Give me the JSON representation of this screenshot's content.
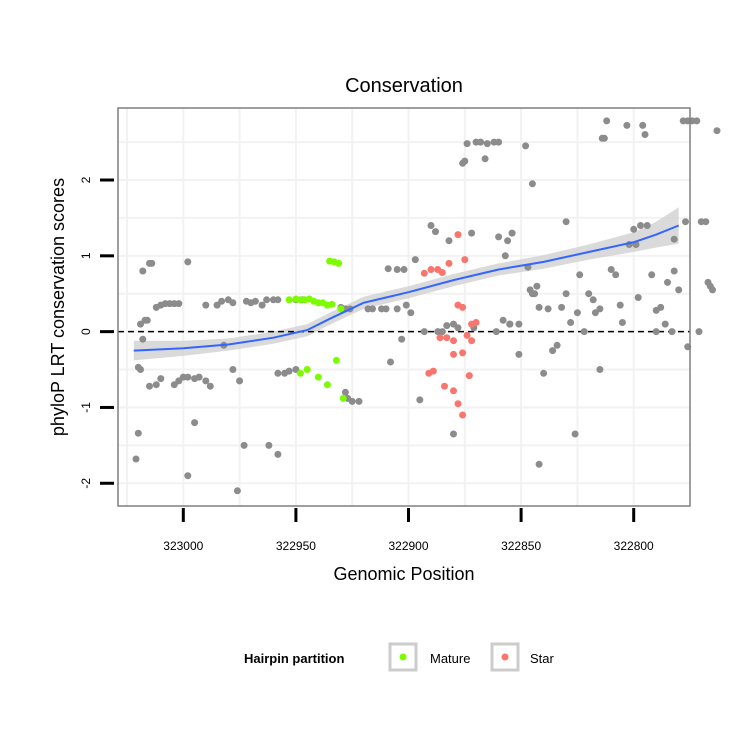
{
  "chart_data": {
    "type": "scatter",
    "title": "Conservation",
    "xlabel": "Genomic Position",
    "ylabel": "phyloP LRT conservation scores",
    "x_reversed": true,
    "xlim": [
      323029,
      322775
    ],
    "ylim": [
      -2.3,
      2.95
    ],
    "x_ticks": [
      323000,
      322950,
      322900,
      322850,
      322800
    ],
    "y_ticks": [
      -2,
      -1,
      0,
      1,
      2
    ],
    "reference_line": {
      "y": 0,
      "style": "dashed"
    },
    "grid": true,
    "legend": {
      "title": "Hairpin partition",
      "placement": "bottom",
      "entries": [
        {
          "label": "Mature",
          "color": "#7cfc00"
        },
        {
          "label": "Star",
          "color": "#f8766d"
        }
      ]
    },
    "colors": {
      "other": "#8c8c8c",
      "mature": "#7cfc00",
      "star": "#f8766d",
      "smooth": "#3366ff",
      "band": "#d3d3d3"
    },
    "smooth": {
      "x": [
        323022,
        323000,
        322980,
        322960,
        322945,
        322935,
        322920,
        322900,
        322880,
        322860,
        322840,
        322820,
        322800,
        322790,
        322780
      ],
      "y": [
        -0.25,
        -0.22,
        -0.17,
        -0.08,
        0.02,
        0.17,
        0.38,
        0.52,
        0.68,
        0.82,
        0.92,
        1.05,
        1.18,
        1.28,
        1.4
      ],
      "se": [
        0.13,
        0.1,
        0.08,
        0.08,
        0.08,
        0.08,
        0.08,
        0.08,
        0.08,
        0.08,
        0.09,
        0.1,
        0.13,
        0.17,
        0.24
      ]
    },
    "series": [
      {
        "group": "other",
        "points": [
          [
            323021,
            -1.68
          ],
          [
            323020,
            -1.34
          ],
          [
            323020,
            -0.47
          ],
          [
            323019,
            -0.5
          ],
          [
            323019,
            0.1
          ],
          [
            323018,
            -0.1
          ],
          [
            323018,
            0.8
          ],
          [
            323017,
            0.15
          ],
          [
            323016,
            0.15
          ],
          [
            323015,
            0.9
          ],
          [
            323014,
            0.9
          ],
          [
            323015,
            -0.72
          ],
          [
            323012,
            -0.7
          ],
          [
            323012,
            0.32
          ],
          [
            323010,
            0.35
          ],
          [
            323010,
            -0.62
          ],
          [
            323008,
            0.37
          ],
          [
            323006,
            0.37
          ],
          [
            323004,
            0.37
          ],
          [
            323002,
            0.37
          ],
          [
            323004,
            -0.7
          ],
          [
            323002,
            -0.65
          ],
          [
            323000,
            -0.6
          ],
          [
            322998,
            -0.6
          ],
          [
            322998,
            -1.9
          ],
          [
            322998,
            0.92
          ],
          [
            322995,
            -1.2
          ],
          [
            322995,
            -0.62
          ],
          [
            322993,
            -0.6
          ],
          [
            322990,
            -0.65
          ],
          [
            322990,
            0.35
          ],
          [
            322988,
            -0.72
          ],
          [
            322985,
            0.35
          ],
          [
            322983,
            0.4
          ],
          [
            322982,
            -0.18
          ],
          [
            322980,
            0.42
          ],
          [
            322978,
            0.38
          ],
          [
            322978,
            -0.5
          ],
          [
            322975,
            -0.65
          ],
          [
            322976,
            -2.1
          ],
          [
            322973,
            -1.5
          ],
          [
            322972,
            0.4
          ],
          [
            322970,
            0.38
          ],
          [
            322968,
            0.4
          ],
          [
            322965,
            0.35
          ],
          [
            322963,
            0.42
          ],
          [
            322960,
            0.42
          ],
          [
            322958,
            0.42
          ],
          [
            322962,
            -1.5
          ],
          [
            322958,
            -1.62
          ],
          [
            322958,
            -0.55
          ],
          [
            322955,
            -0.55
          ],
          [
            322953,
            -0.52
          ],
          [
            322950,
            -0.5
          ],
          [
            322950,
            0.42
          ],
          [
            322947,
            0.42
          ],
          [
            322930,
            0.32
          ],
          [
            322928,
            0.3
          ],
          [
            322926,
            0.3
          ],
          [
            322928,
            -0.8
          ],
          [
            322927,
            -0.88
          ],
          [
            322925,
            -0.92
          ],
          [
            322922,
            -0.92
          ],
          [
            322918,
            0.3
          ],
          [
            322916,
            0.3
          ],
          [
            322912,
            0.3
          ],
          [
            322910,
            0.3
          ],
          [
            322905,
            0.3
          ],
          [
            322908,
            -0.4
          ],
          [
            322909,
            0.83
          ],
          [
            322905,
            0.82
          ],
          [
            322902,
            0.82
          ],
          [
            322901,
            0.35
          ],
          [
            322899,
            0.25
          ],
          [
            322897,
            0.95
          ],
          [
            322893,
            0.0
          ],
          [
            322890,
            1.4
          ],
          [
            322888,
            1.32
          ],
          [
            322887,
            0.0
          ],
          [
            322885,
            0.0
          ],
          [
            322883,
            0.08
          ],
          [
            322882,
            1.2
          ],
          [
            322880,
            0.1
          ],
          [
            322880,
            -1.35
          ],
          [
            322878,
            0.05
          ],
          [
            322876,
            2.22
          ],
          [
            322875,
            2.25
          ],
          [
            322874,
            2.48
          ],
          [
            322872,
            1.3
          ],
          [
            322870,
            2.5
          ],
          [
            322868,
            2.5
          ],
          [
            322866,
            2.28
          ],
          [
            322865,
            2.48
          ],
          [
            322862,
            2.5
          ],
          [
            322860,
            2.5
          ],
          [
            322860,
            1.25
          ],
          [
            322858,
            0.15
          ],
          [
            322856,
            1.2
          ],
          [
            322855,
            0.1
          ],
          [
            322854,
            1.3
          ],
          [
            322851,
            0.1
          ],
          [
            322851,
            -0.3
          ],
          [
            322848,
            2.45
          ],
          [
            322847,
            0.85
          ],
          [
            322846,
            0.55
          ],
          [
            322845,
            1.95
          ],
          [
            322844,
            0.5
          ],
          [
            322843,
            0.6
          ],
          [
            322842,
            0.32
          ],
          [
            322840,
            -0.55
          ],
          [
            322842,
            -1.75
          ],
          [
            322838,
            0.3
          ],
          [
            322836,
            -0.25
          ],
          [
            322834,
            -0.18
          ],
          [
            322832,
            0.32
          ],
          [
            322830,
            1.45
          ],
          [
            322828,
            0.12
          ],
          [
            322826,
            -1.35
          ],
          [
            322825,
            0.25
          ],
          [
            322824,
            0.75
          ],
          [
            322822,
            0.0
          ],
          [
            322820,
            0.5
          ],
          [
            322818,
            0.42
          ],
          [
            322817,
            0.25
          ],
          [
            322815,
            -0.5
          ],
          [
            322814,
            2.55
          ],
          [
            322813,
            2.55
          ],
          [
            322812,
            2.78
          ],
          [
            322810,
            0.82
          ],
          [
            322808,
            0.75
          ],
          [
            322806,
            0.35
          ],
          [
            322805,
            0.12
          ],
          [
            322803,
            2.72
          ],
          [
            322802,
            1.15
          ],
          [
            322800,
            1.35
          ],
          [
            322799,
            1.15
          ],
          [
            322798,
            0.45
          ],
          [
            322797,
            1.4
          ],
          [
            322796,
            2.72
          ],
          [
            322794,
            1.4
          ],
          [
            322792,
            0.75
          ],
          [
            322790,
            0.28
          ],
          [
            322788,
            0.32
          ],
          [
            322786,
            0.1
          ],
          [
            322785,
            0.65
          ],
          [
            322783,
            0.0
          ],
          [
            322782,
            1.22
          ],
          [
            322780,
            0.55
          ],
          [
            322778,
            2.78
          ],
          [
            322777,
            1.45
          ],
          [
            322776,
            2.78
          ],
          [
            322774,
            2.78
          ],
          [
            322772,
            2.78
          ],
          [
            322771,
            0.0
          ],
          [
            322770,
            1.45
          ],
          [
            322768,
            1.45
          ],
          [
            322767,
            0.65
          ],
          [
            322766,
            0.6
          ],
          [
            322765,
            0.55
          ],
          [
            322763,
            2.65
          ],
          [
            322776,
            -0.2
          ],
          [
            322782,
            0.8
          ],
          [
            322790,
            0.0
          ],
          [
            322795,
            2.6
          ],
          [
            322815,
            0.3
          ],
          [
            322830,
            0.5
          ],
          [
            322845,
            0.5
          ],
          [
            322855,
            0.1
          ],
          [
            322871,
            0.05
          ],
          [
            322895,
            -0.9
          ],
          [
            322903,
            -0.1
          ],
          [
            322861,
            0.0
          ],
          [
            322857,
            1.0
          ]
        ]
      },
      {
        "group": "mature",
        "points": [
          [
            322953,
            0.42
          ],
          [
            322950,
            0.43
          ],
          [
            322948,
            0.42
          ],
          [
            322946,
            0.42
          ],
          [
            322944,
            0.43
          ],
          [
            322942,
            0.4
          ],
          [
            322940,
            0.38
          ],
          [
            322938,
            0.38
          ],
          [
            322936,
            0.35
          ],
          [
            322934,
            0.36
          ],
          [
            322935,
            0.93
          ],
          [
            322933,
            0.92
          ],
          [
            322931,
            0.9
          ],
          [
            322930,
            0.3
          ],
          [
            322948,
            -0.55
          ],
          [
            322945,
            -0.5
          ],
          [
            322940,
            -0.6
          ],
          [
            322936,
            -0.7
          ],
          [
            322932,
            -0.38
          ],
          [
            322929,
            -0.88
          ]
        ]
      },
      {
        "group": "star",
        "points": [
          [
            322893,
            0.77
          ],
          [
            322890,
            0.82
          ],
          [
            322887,
            0.82
          ],
          [
            322885,
            0.78
          ],
          [
            322882,
            0.9
          ],
          [
            322878,
            1.28
          ],
          [
            322875,
            0.95
          ],
          [
            322872,
            0.1
          ],
          [
            322870,
            0.12
          ],
          [
            322878,
            0.35
          ],
          [
            322876,
            0.32
          ],
          [
            322891,
            -0.55
          ],
          [
            322889,
            -0.52
          ],
          [
            322886,
            -0.08
          ],
          [
            322883,
            -0.08
          ],
          [
            322880,
            -0.12
          ],
          [
            322880,
            -0.3
          ],
          [
            322876,
            -0.28
          ],
          [
            322874,
            -0.05
          ],
          [
            322884,
            -0.72
          ],
          [
            322880,
            -0.78
          ],
          [
            322878,
            -0.95
          ],
          [
            322876,
            -1.1
          ],
          [
            322873,
            -0.58
          ],
          [
            322872,
            -0.12
          ]
        ]
      }
    ]
  }
}
